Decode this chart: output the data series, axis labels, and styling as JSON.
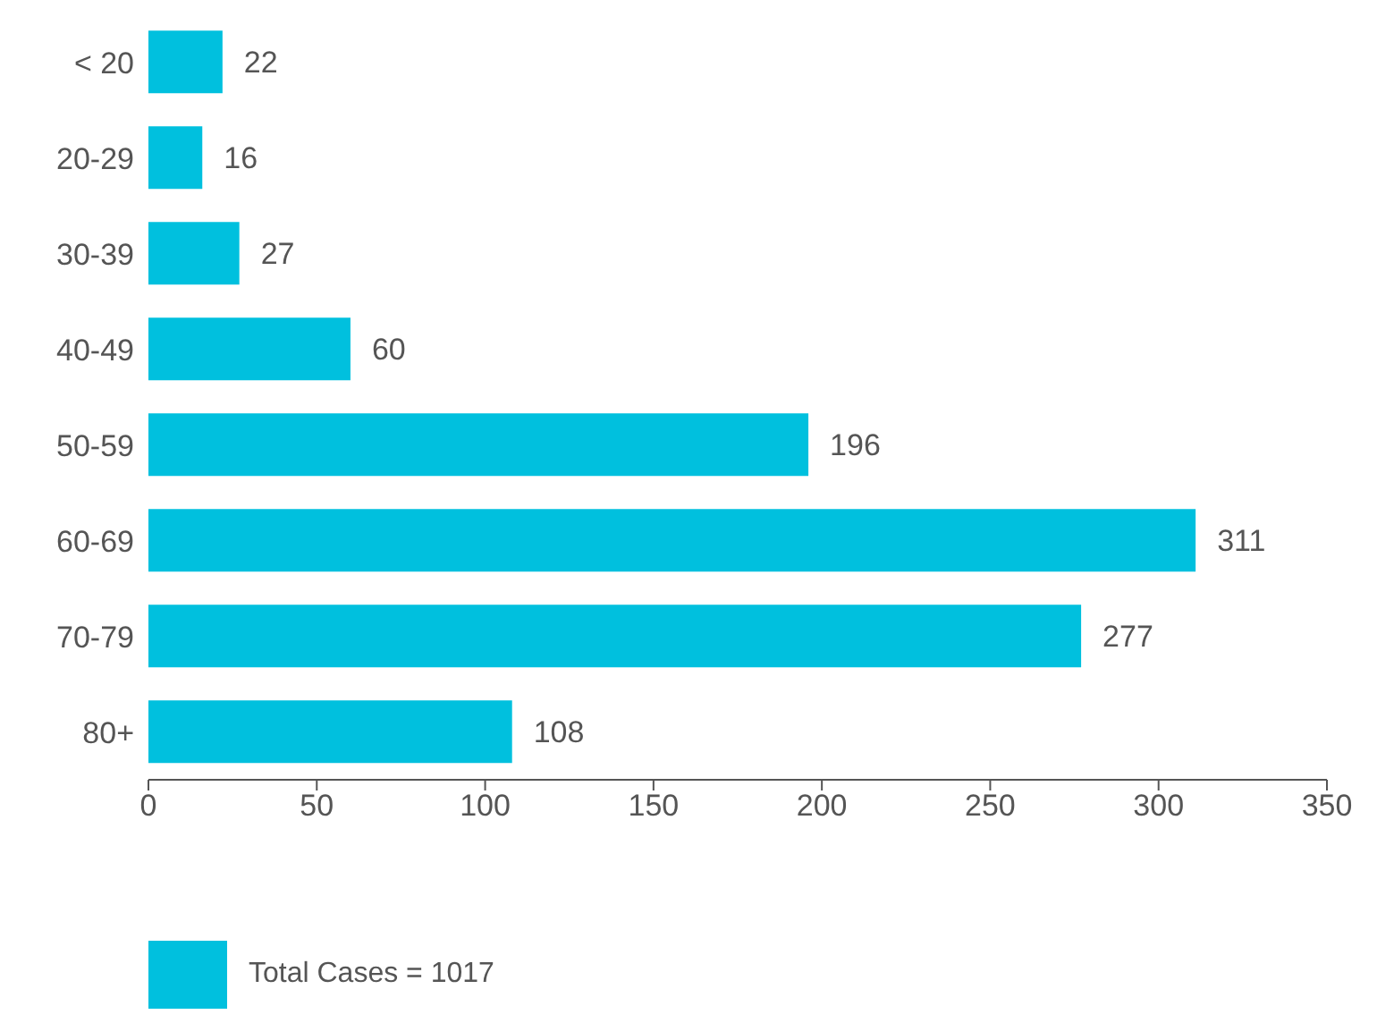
{
  "chart_data": {
    "type": "bar",
    "orientation": "horizontal",
    "categories": [
      "< 20",
      "20-29",
      "30-39",
      "40-49",
      "50-59",
      "60-69",
      "70-79",
      "80+"
    ],
    "series": [
      {
        "name": "Total Cases = 1017",
        "color": "#00c0de",
        "values": [
          22,
          16,
          27,
          60,
          196,
          311,
          277,
          108
        ]
      }
    ],
    "xlim": [
      0,
      350
    ],
    "xticks": [
      0,
      50,
      100,
      150,
      200,
      250,
      300,
      350
    ],
    "data_labels": true,
    "legend": "bottom left",
    "grid": false
  }
}
